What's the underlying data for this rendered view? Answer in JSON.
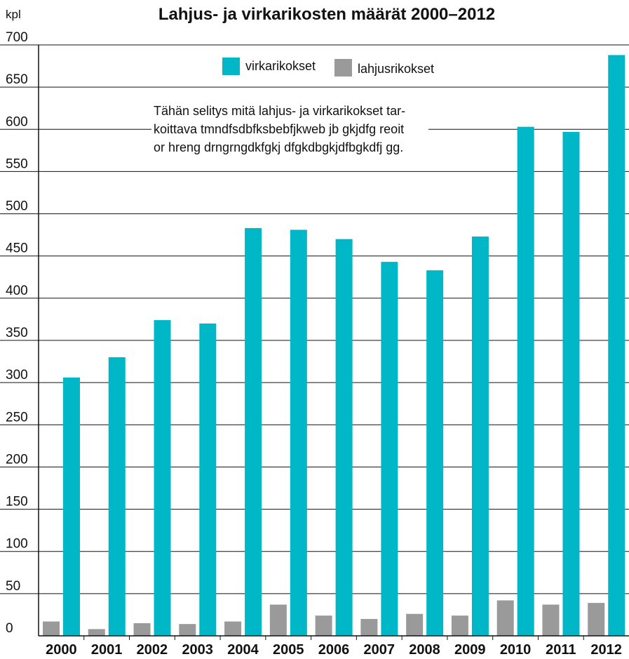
{
  "colors": {
    "primary_series": "#00b7c7",
    "secondary_series": "#9a9a9a",
    "gridline": "#111111",
    "axis": "#111111",
    "background": "#ffffff"
  },
  "chart_data": {
    "type": "bar",
    "title": "Lahjus- ja virkarikosten määrät 2000–2012",
    "ylabel": "kpl",
    "xlabel": "",
    "ylim": [
      0,
      700
    ],
    "yticks": [
      0,
      50,
      100,
      150,
      200,
      250,
      300,
      350,
      400,
      450,
      500,
      550,
      600,
      650,
      700
    ],
    "grid": true,
    "legend_position": "top-center",
    "note": [
      "Tähän selitys mitä lahjus- ja virkarikokset tar-",
      "koittava tmndfsdbfksbebfjkweb jb gkjdfg reoit",
      "or hreng drngrngdkfgkj dfgkdbgkjdfbgkdfj gg."
    ],
    "categories": [
      "2000",
      "2001",
      "2002",
      "2003",
      "2004",
      "2005",
      "2006",
      "2007",
      "2008",
      "2009",
      "2010",
      "2011",
      "2012"
    ],
    "series": [
      {
        "name": "lahjusrikokset",
        "color_key": "secondary_series",
        "values": [
          17,
          8,
          15,
          14,
          17,
          37,
          24,
          20,
          26,
          24,
          42,
          37,
          39
        ]
      },
      {
        "name": "virkarikokset",
        "color_key": "primary_series",
        "values": [
          306,
          330,
          374,
          370,
          483,
          481,
          470,
          443,
          433,
          473,
          603,
          597,
          688
        ]
      }
    ],
    "legend": [
      {
        "name": "virkarikokset",
        "color_key": "primary_series"
      },
      {
        "name": "lahjusrikokset",
        "color_key": "secondary_series"
      }
    ]
  }
}
